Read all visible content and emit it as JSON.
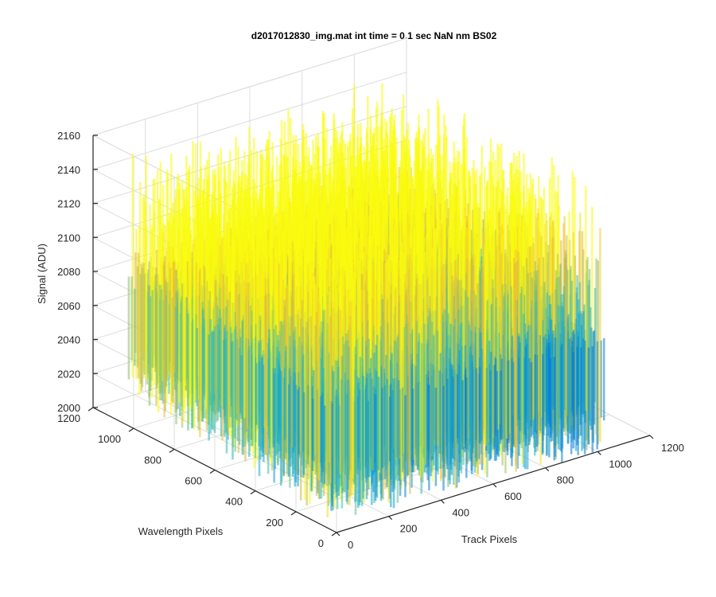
{
  "chart_data": {
    "type": "surface",
    "title": "d2017012830_img.mat int time = 0.1 sec  NaN nm BS02",
    "xlabel": "Track Pixels",
    "ylabel": "Wavelength Pixels",
    "zlabel": "Signal (ADU)",
    "xlim": [
      0,
      1200
    ],
    "ylim": [
      0,
      1200
    ],
    "zlim": [
      2000,
      2160
    ],
    "x_ticks": [
      "0",
      "200",
      "400",
      "600",
      "800",
      "1000",
      "1200"
    ],
    "y_ticks": [
      "0",
      "200",
      "400",
      "600",
      "800",
      "1000",
      "1200"
    ],
    "z_ticks": [
      "2000",
      "2020",
      "2040",
      "2060",
      "2080",
      "2100",
      "2120",
      "2140",
      "2160"
    ],
    "data_extent": {
      "x": [
        0,
        1024
      ],
      "y": [
        0,
        1024
      ]
    },
    "signal_mean_approx": 2060,
    "signal_peak_approx": 2150,
    "colormap": "parula",
    "colors": {
      "low": "#0072bd",
      "mid": "#4dbeee",
      "high": "#edb120"
    },
    "grid": true
  }
}
